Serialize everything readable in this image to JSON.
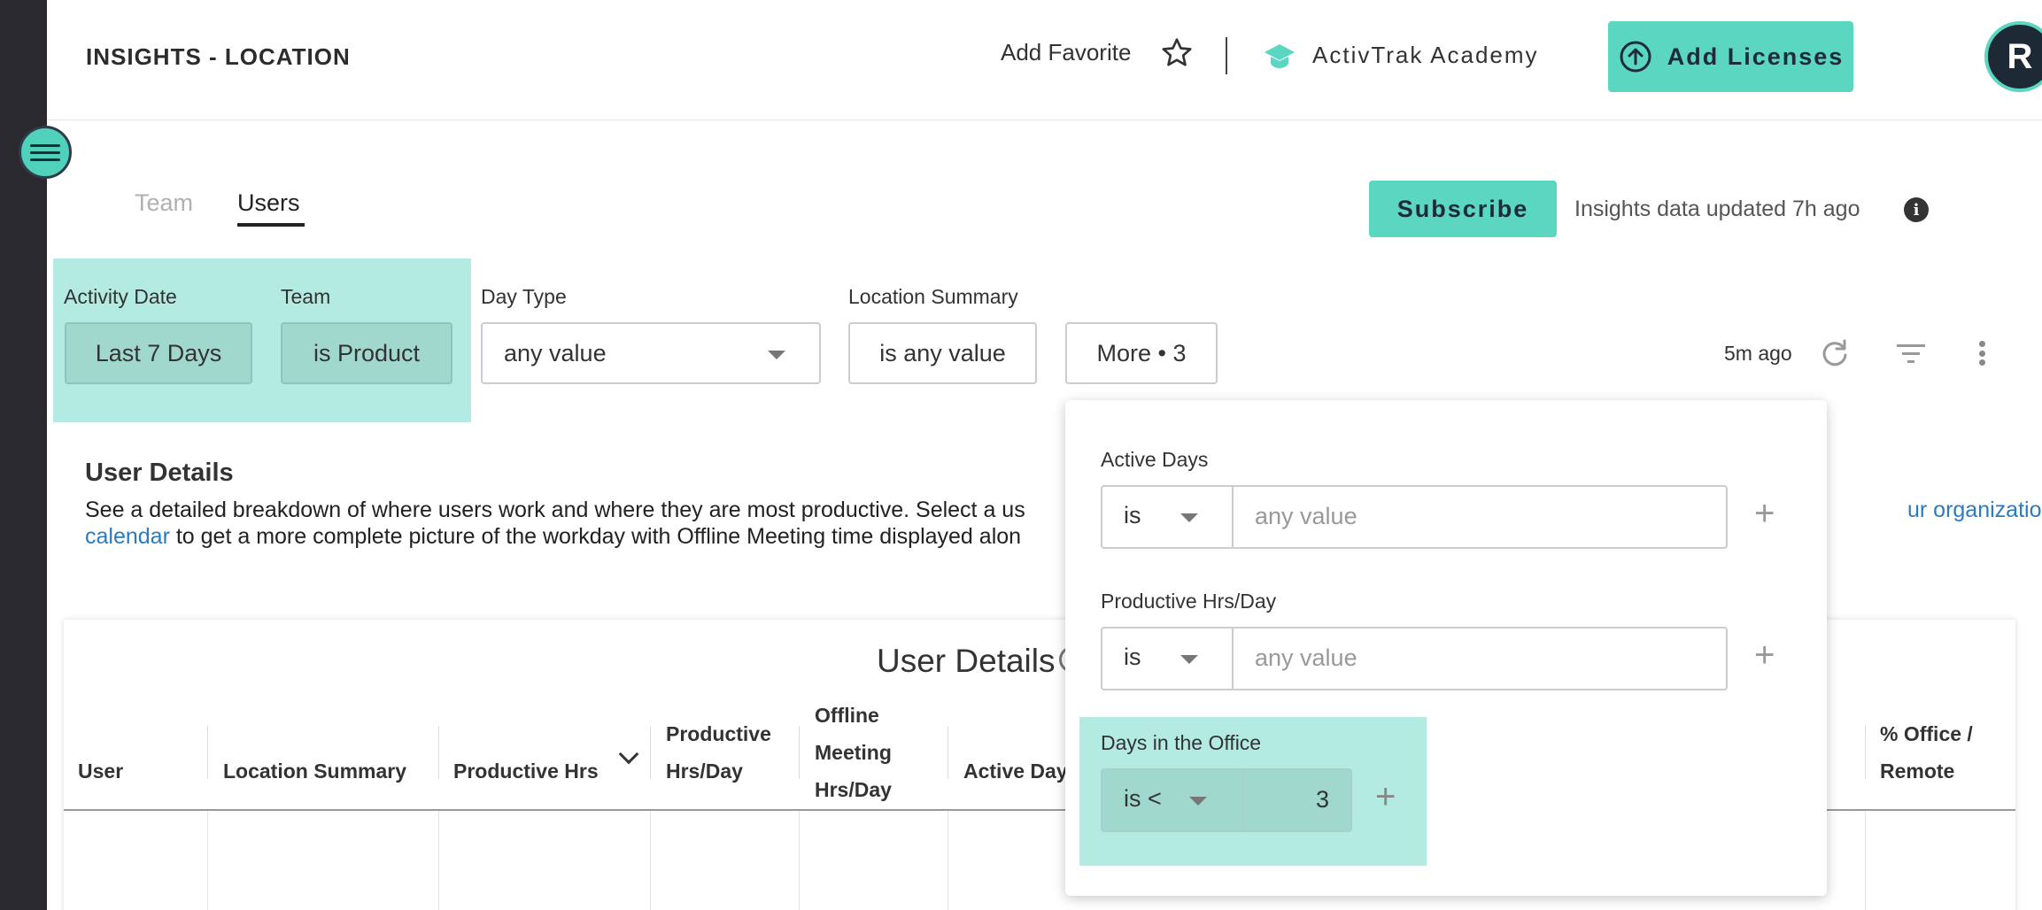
{
  "header": {
    "title": "INSIGHTS - LOCATION",
    "add_favorite": "Add Favorite",
    "academy": "ActivTrak Academy",
    "add_licenses": "Add Licenses",
    "avatar_initial": "R"
  },
  "tabs": [
    {
      "label": "Team",
      "active": false
    },
    {
      "label": "Users",
      "active": true
    }
  ],
  "subscribe_label": "Subscribe",
  "updated_text": "Insights data updated 7h ago",
  "info_glyph": "i",
  "filters": {
    "activity_date": {
      "label": "Activity Date",
      "value": "Last 7 Days"
    },
    "team": {
      "label": "Team",
      "value": "is Product"
    },
    "day_type": {
      "label": "Day Type",
      "value": "any value"
    },
    "location_summary": {
      "label": "Location Summary",
      "value": "is any value"
    },
    "more": "More • 3",
    "refresh_time": "5m ago"
  },
  "section": {
    "title": "User Details",
    "desc_line1_a": "See a detailed breakdown of where users work and where they are most productive. Select a us",
    "desc_line1_link": "ur organization’s",
    "desc_line2_link": "calendar",
    "desc_line2_b": " to get a more complete picture of the workday with Offline Meeting time displayed alon"
  },
  "table": {
    "title": "User Details",
    "columns": {
      "user": "User",
      "location_summary": "Location Summary",
      "productive_hrs": "Productive Hrs",
      "productive_hrs_day_1": "Productive",
      "productive_hrs_day_2": "Hrs/Day",
      "offline_meeting_1": "Offline",
      "offline_meeting_2": "Meeting",
      "offline_meeting_3": "Hrs/Day",
      "active_days": "Active Day",
      "office_remote_1": "% Office /",
      "office_remote_2": "Remote"
    }
  },
  "more_filters": {
    "active_days": {
      "label": "Active Days",
      "op": "is",
      "value": "any value"
    },
    "productive_hrs_day": {
      "label": "Productive Hrs/Day",
      "op": "is",
      "value": "any value"
    },
    "days_in_office": {
      "label": "Days in the Office",
      "op": "is <",
      "value": "3"
    },
    "plus": "+"
  },
  "colors": {
    "accent": "#5bd6c1",
    "highlight": "#b3ebe2",
    "rail": "#2a2a2e",
    "link": "#2a7bc0"
  }
}
